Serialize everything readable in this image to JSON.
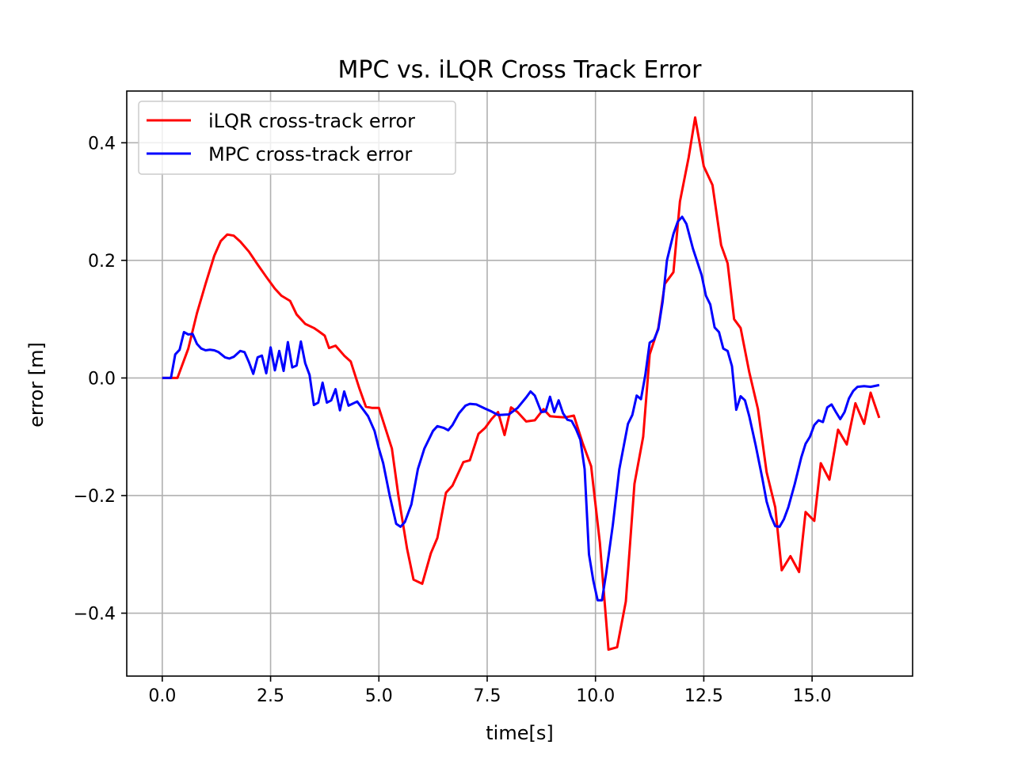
{
  "chart_data": {
    "type": "line",
    "title": "MPC vs. iLQR Cross Track Error",
    "xlabel": "time[s]",
    "ylabel": "error [m]",
    "xlim": [
      -0.82,
      17.32
    ],
    "ylim": [
      -0.507,
      0.488
    ],
    "x_ticks": [
      0.0,
      2.5,
      5.0,
      7.5,
      10.0,
      12.5,
      15.0
    ],
    "x_tick_labels": [
      "0.0",
      "2.5",
      "5.0",
      "7.5",
      "10.0",
      "12.5",
      "15.0"
    ],
    "y_ticks": [
      -0.4,
      -0.2,
      0.0,
      0.2,
      0.4
    ],
    "y_tick_labels": [
      "−0.4",
      "−0.2",
      "0.0",
      "0.2",
      "0.4"
    ],
    "grid": true,
    "legend_position": "top-left",
    "series": [
      {
        "name": "iLQR cross-track error",
        "color": "#ff0000",
        "points": [
          [
            0.0,
            0.0
          ],
          [
            0.2,
            0.0
          ],
          [
            0.35,
            0.0
          ],
          [
            0.6,
            0.05
          ],
          [
            0.8,
            0.11
          ],
          [
            1.0,
            0.16
          ],
          [
            1.2,
            0.208
          ],
          [
            1.35,
            0.233
          ],
          [
            1.5,
            0.244
          ],
          [
            1.65,
            0.242
          ],
          [
            1.8,
            0.232
          ],
          [
            2.0,
            0.215
          ],
          [
            2.2,
            0.193
          ],
          [
            2.4,
            0.172
          ],
          [
            2.6,
            0.152
          ],
          [
            2.75,
            0.14
          ],
          [
            2.95,
            0.131
          ],
          [
            3.1,
            0.108
          ],
          [
            3.3,
            0.092
          ],
          [
            3.5,
            0.085
          ],
          [
            3.6,
            0.08
          ],
          [
            3.75,
            0.072
          ],
          [
            3.85,
            0.051
          ],
          [
            4.0,
            0.055
          ],
          [
            4.2,
            0.038
          ],
          [
            4.35,
            0.028
          ],
          [
            4.55,
            -0.018
          ],
          [
            4.7,
            -0.049
          ],
          [
            4.85,
            -0.051
          ],
          [
            5.0,
            -0.051
          ],
          [
            5.3,
            -0.12
          ],
          [
            5.45,
            -0.2
          ],
          [
            5.65,
            -0.29
          ],
          [
            5.8,
            -0.343
          ],
          [
            6.0,
            -0.35
          ],
          [
            6.2,
            -0.298
          ],
          [
            6.35,
            -0.272
          ],
          [
            6.55,
            -0.195
          ],
          [
            6.7,
            -0.183
          ],
          [
            6.95,
            -0.143
          ],
          [
            7.1,
            -0.14
          ],
          [
            7.3,
            -0.095
          ],
          [
            7.45,
            -0.085
          ],
          [
            7.6,
            -0.07
          ],
          [
            7.75,
            -0.058
          ],
          [
            7.9,
            -0.097
          ],
          [
            8.05,
            -0.05
          ],
          [
            8.2,
            -0.058
          ],
          [
            8.4,
            -0.074
          ],
          [
            8.6,
            -0.072
          ],
          [
            8.8,
            -0.053
          ],
          [
            8.95,
            -0.065
          ],
          [
            9.1,
            -0.066
          ],
          [
            9.3,
            -0.067
          ],
          [
            9.5,
            -0.064
          ],
          [
            9.7,
            -0.11
          ],
          [
            9.9,
            -0.15
          ],
          [
            10.1,
            -0.28
          ],
          [
            10.3,
            -0.462
          ],
          [
            10.5,
            -0.458
          ],
          [
            10.7,
            -0.38
          ],
          [
            10.9,
            -0.18
          ],
          [
            11.1,
            -0.1
          ],
          [
            11.25,
            0.04
          ],
          [
            11.45,
            0.085
          ],
          [
            11.6,
            0.16
          ],
          [
            11.8,
            0.18
          ],
          [
            11.95,
            0.3
          ],
          [
            12.15,
            0.375
          ],
          [
            12.3,
            0.443
          ],
          [
            12.5,
            0.36
          ],
          [
            12.7,
            0.328
          ],
          [
            12.9,
            0.226
          ],
          [
            13.05,
            0.195
          ],
          [
            13.2,
            0.1
          ],
          [
            13.35,
            0.085
          ],
          [
            13.55,
            0.01
          ],
          [
            13.75,
            -0.053
          ],
          [
            13.95,
            -0.16
          ],
          [
            14.15,
            -0.22
          ],
          [
            14.3,
            -0.327
          ],
          [
            14.5,
            -0.303
          ],
          [
            14.7,
            -0.33
          ],
          [
            14.85,
            -0.228
          ],
          [
            15.05,
            -0.243
          ],
          [
            15.2,
            -0.145
          ],
          [
            15.4,
            -0.173
          ],
          [
            15.6,
            -0.088
          ],
          [
            15.8,
            -0.113
          ],
          [
            16.0,
            -0.043
          ],
          [
            16.2,
            -0.078
          ],
          [
            16.35,
            -0.025
          ],
          [
            16.55,
            -0.068
          ]
        ]
      },
      {
        "name": "MPC cross-track error",
        "color": "#0000ff",
        "points": [
          [
            0.0,
            0.0
          ],
          [
            0.2,
            0.0
          ],
          [
            0.3,
            0.04
          ],
          [
            0.4,
            0.048
          ],
          [
            0.5,
            0.078
          ],
          [
            0.6,
            0.074
          ],
          [
            0.7,
            0.075
          ],
          [
            0.8,
            0.058
          ],
          [
            0.9,
            0.05
          ],
          [
            1.0,
            0.047
          ],
          [
            1.1,
            0.048
          ],
          [
            1.2,
            0.047
          ],
          [
            1.3,
            0.044
          ],
          [
            1.45,
            0.035
          ],
          [
            1.55,
            0.033
          ],
          [
            1.65,
            0.036
          ],
          [
            1.8,
            0.046
          ],
          [
            1.9,
            0.044
          ],
          [
            2.0,
            0.027
          ],
          [
            2.1,
            0.007
          ],
          [
            2.2,
            0.035
          ],
          [
            2.3,
            0.038
          ],
          [
            2.4,
            0.008
          ],
          [
            2.5,
            0.052
          ],
          [
            2.6,
            0.013
          ],
          [
            2.7,
            0.046
          ],
          [
            2.8,
            0.012
          ],
          [
            2.9,
            0.061
          ],
          [
            3.0,
            0.018
          ],
          [
            3.1,
            0.021
          ],
          [
            3.2,
            0.062
          ],
          [
            3.3,
            0.025
          ],
          [
            3.4,
            0.005
          ],
          [
            3.5,
            -0.046
          ],
          [
            3.6,
            -0.042
          ],
          [
            3.7,
            -0.008
          ],
          [
            3.8,
            -0.042
          ],
          [
            3.9,
            -0.038
          ],
          [
            4.0,
            -0.019
          ],
          [
            4.1,
            -0.055
          ],
          [
            4.2,
            -0.023
          ],
          [
            4.3,
            -0.047
          ],
          [
            4.5,
            -0.04
          ],
          [
            4.6,
            -0.05
          ],
          [
            4.75,
            -0.065
          ],
          [
            4.9,
            -0.09
          ],
          [
            5.0,
            -0.12
          ],
          [
            5.1,
            -0.145
          ],
          [
            5.25,
            -0.2
          ],
          [
            5.4,
            -0.248
          ],
          [
            5.5,
            -0.253
          ],
          [
            5.6,
            -0.245
          ],
          [
            5.75,
            -0.215
          ],
          [
            5.9,
            -0.155
          ],
          [
            6.05,
            -0.12
          ],
          [
            6.25,
            -0.09
          ],
          [
            6.35,
            -0.082
          ],
          [
            6.5,
            -0.085
          ],
          [
            6.6,
            -0.089
          ],
          [
            6.7,
            -0.08
          ],
          [
            6.85,
            -0.06
          ],
          [
            7.0,
            -0.047
          ],
          [
            7.1,
            -0.044
          ],
          [
            7.25,
            -0.045
          ],
          [
            7.45,
            -0.052
          ],
          [
            7.6,
            -0.057
          ],
          [
            7.75,
            -0.063
          ],
          [
            8.0,
            -0.062
          ],
          [
            8.2,
            -0.051
          ],
          [
            8.4,
            -0.033
          ],
          [
            8.5,
            -0.023
          ],
          [
            8.6,
            -0.03
          ],
          [
            8.75,
            -0.058
          ],
          [
            8.85,
            -0.057
          ],
          [
            8.95,
            -0.032
          ],
          [
            9.05,
            -0.058
          ],
          [
            9.15,
            -0.038
          ],
          [
            9.25,
            -0.06
          ],
          [
            9.35,
            -0.071
          ],
          [
            9.45,
            -0.073
          ],
          [
            9.55,
            -0.087
          ],
          [
            9.65,
            -0.105
          ],
          [
            9.75,
            -0.155
          ],
          [
            9.85,
            -0.3
          ],
          [
            9.95,
            -0.345
          ],
          [
            10.05,
            -0.378
          ],
          [
            10.15,
            -0.378
          ],
          [
            10.25,
            -0.33
          ],
          [
            10.4,
            -0.25
          ],
          [
            10.55,
            -0.155
          ],
          [
            10.75,
            -0.078
          ],
          [
            10.85,
            -0.063
          ],
          [
            10.95,
            -0.03
          ],
          [
            11.05,
            -0.036
          ],
          [
            11.15,
            0.005
          ],
          [
            11.25,
            0.06
          ],
          [
            11.35,
            0.065
          ],
          [
            11.45,
            0.083
          ],
          [
            11.55,
            0.13
          ],
          [
            11.65,
            0.2
          ],
          [
            11.8,
            0.245
          ],
          [
            11.9,
            0.266
          ],
          [
            12.0,
            0.274
          ],
          [
            12.1,
            0.262
          ],
          [
            12.25,
            0.22
          ],
          [
            12.45,
            0.175
          ],
          [
            12.55,
            0.14
          ],
          [
            12.65,
            0.125
          ],
          [
            12.75,
            0.086
          ],
          [
            12.85,
            0.078
          ],
          [
            12.95,
            0.05
          ],
          [
            13.05,
            0.046
          ],
          [
            13.15,
            0.02
          ],
          [
            13.25,
            -0.054
          ],
          [
            13.35,
            -0.031
          ],
          [
            13.45,
            -0.038
          ],
          [
            13.55,
            -0.065
          ],
          [
            13.7,
            -0.115
          ],
          [
            13.85,
            -0.17
          ],
          [
            13.95,
            -0.21
          ],
          [
            14.05,
            -0.235
          ],
          [
            14.15,
            -0.252
          ],
          [
            14.25,
            -0.253
          ],
          [
            14.35,
            -0.24
          ],
          [
            14.45,
            -0.22
          ],
          [
            14.6,
            -0.18
          ],
          [
            14.75,
            -0.135
          ],
          [
            14.85,
            -0.112
          ],
          [
            14.95,
            -0.1
          ],
          [
            15.05,
            -0.08
          ],
          [
            15.15,
            -0.072
          ],
          [
            15.25,
            -0.075
          ],
          [
            15.35,
            -0.05
          ],
          [
            15.45,
            -0.045
          ],
          [
            15.55,
            -0.058
          ],
          [
            15.65,
            -0.07
          ],
          [
            15.75,
            -0.058
          ],
          [
            15.85,
            -0.035
          ],
          [
            15.95,
            -0.022
          ],
          [
            16.05,
            -0.015
          ],
          [
            16.2,
            -0.014
          ],
          [
            16.35,
            -0.015
          ],
          [
            16.55,
            -0.012
          ]
        ]
      }
    ]
  }
}
